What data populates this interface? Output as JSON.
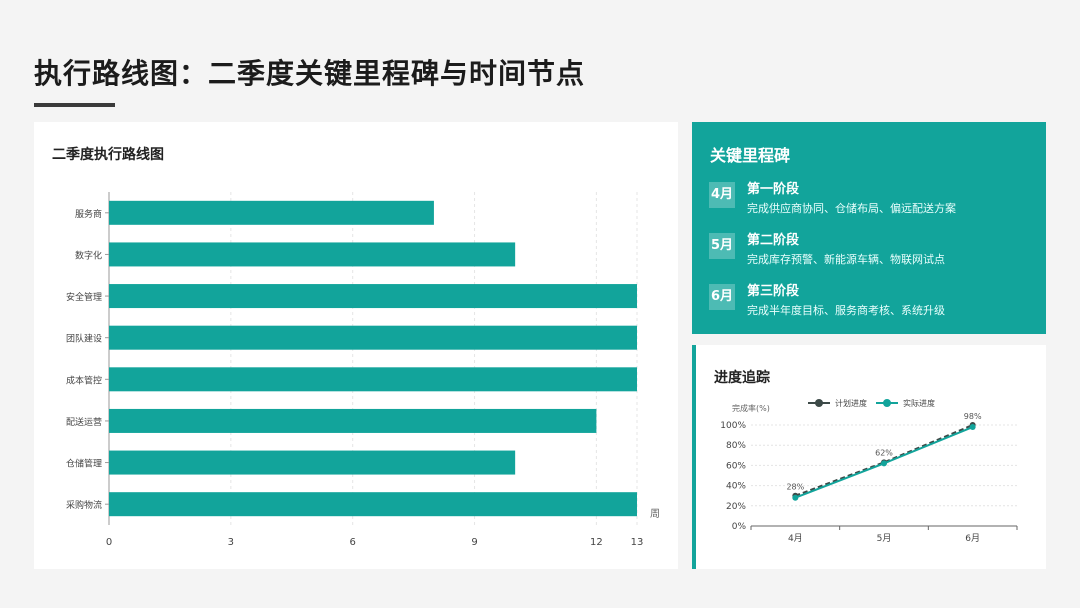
{
  "page": {
    "title": "执行路线图：二季度关键里程碑与时间节点"
  },
  "bar_card": {
    "title": "二季度执行路线图"
  },
  "milestones": {
    "title": "关键里程碑",
    "items": [
      {
        "month": "4月",
        "phase": "第一阶段",
        "desc": "完成供应商协同、仓储布局、偏远配送方案"
      },
      {
        "month": "5月",
        "phase": "第二阶段",
        "desc": "完成库存预警、新能源车辆、物联网试点"
      },
      {
        "month": "6月",
        "phase": "第三阶段",
        "desc": "完成半年度目标、服务商考核、系统升级"
      }
    ]
  },
  "progress_card": {
    "title": "进度追踪"
  },
  "colors": {
    "teal": "#12a49b",
    "dark": "#3d4a48",
    "axis": "#999999"
  },
  "chart_data": [
    {
      "type": "bar",
      "orientation": "horizontal",
      "categories": [
        "服务商",
        "数字化",
        "安全管理",
        "团队建设",
        "成本管控",
        "配送运营",
        "仓储管理",
        "采购物流"
      ],
      "values": [
        8,
        10,
        13,
        13,
        13,
        12,
        10,
        13
      ],
      "xticks": [
        0,
        3,
        6,
        9,
        12,
        13
      ],
      "xlim": [
        0,
        13
      ],
      "unit_label": "周",
      "grid": true,
      "color": "#12a49b"
    },
    {
      "type": "line",
      "categories": [
        "4月",
        "5月",
        "6月"
      ],
      "ylabel": "完成率(%)",
      "ylim": [
        0,
        100
      ],
      "yticks": [
        "0%",
        "20%",
        "40%",
        "60%",
        "80%",
        "100%"
      ],
      "series": [
        {
          "name": "计划进度",
          "values": [
            30,
            63,
            100
          ],
          "color": "#3d4a48",
          "dashed": true
        },
        {
          "name": "实际进度",
          "values": [
            28,
            62,
            98
          ],
          "color": "#12a49b",
          "labels": [
            "28%",
            "62%",
            "98%"
          ]
        }
      ],
      "legend": "top",
      "grid": true
    }
  ]
}
